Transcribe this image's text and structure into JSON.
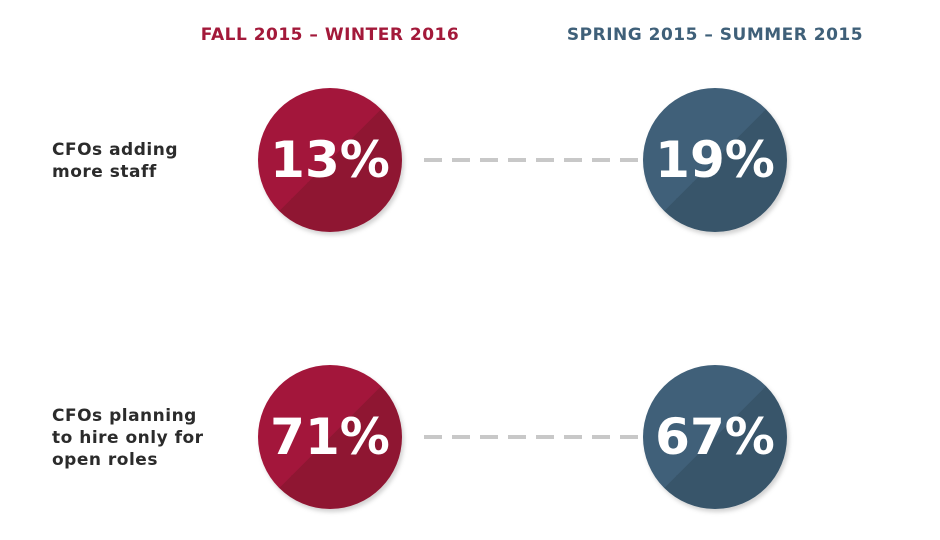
{
  "columns": [
    {
      "title": "FALL 2015 – WINTER 2016",
      "color": "#a3193a"
    },
    {
      "title": "SPRING 2015 – SUMMER 2015",
      "color": "#3f6079"
    }
  ],
  "rows": [
    {
      "label": [
        "CFOs adding",
        "more staff"
      ],
      "values": [
        "13%",
        "19%"
      ]
    },
    {
      "label": [
        "CFOs planning",
        "to hire only for",
        "open roles"
      ],
      "values": [
        "71%",
        "67%"
      ]
    }
  ]
}
